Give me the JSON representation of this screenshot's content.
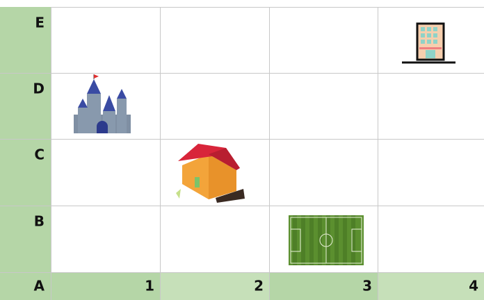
{
  "row_labels": [
    "E",
    "D",
    "C",
    "B"
  ],
  "corner_label": "A",
  "column_labels": [
    "1",
    "2",
    "3",
    "4"
  ]
}
